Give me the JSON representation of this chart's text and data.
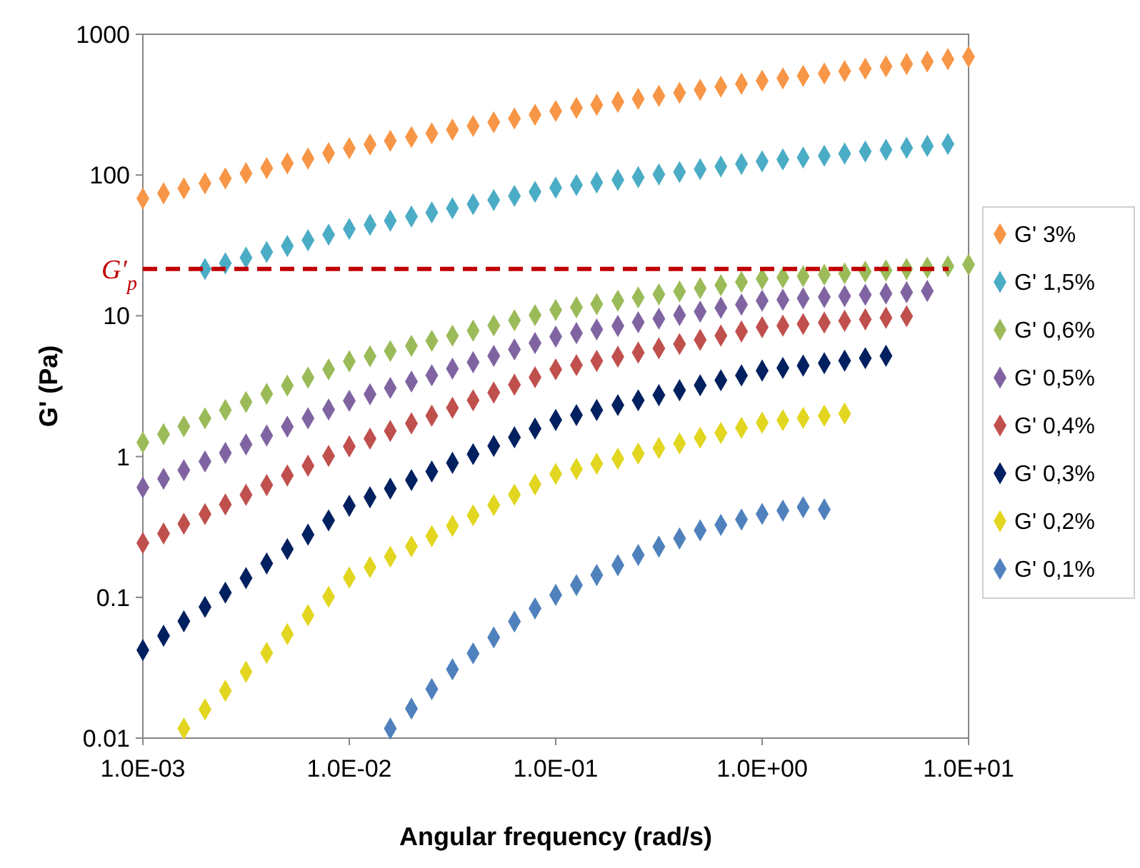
{
  "chart_data": {
    "type": "scatter",
    "xlabel": "Angular frequency (rad/s)",
    "ylabel": "G' (Pa)",
    "log": "xy",
    "grid": false,
    "legend": "right",
    "marker": "diamond",
    "xlim": [
      0.001,
      10
    ],
    "xticks": [
      {
        "value": 0.001,
        "label": "1.0E-03"
      },
      {
        "value": 0.01,
        "label": "1.0E-02"
      },
      {
        "value": 0.1,
        "label": "1.0E-01"
      },
      {
        "value": 1,
        "label": "1.0E+00"
      },
      {
        "value": 10,
        "label": "1.0E+01"
      }
    ],
    "ylim": [
      0.01,
      1000
    ],
    "yticks": [
      0.01,
      0.1,
      1,
      10,
      100,
      1000
    ],
    "x": [
      0.001,
      0.00126,
      0.00158,
      0.002,
      0.00251,
      0.00316,
      0.00398,
      0.00501,
      0.00631,
      0.00794,
      0.01,
      0.0126,
      0.0158,
      0.02,
      0.0251,
      0.0316,
      0.0398,
      0.0501,
      0.0631,
      0.0794,
      0.1,
      0.126,
      0.158,
      0.2,
      0.251,
      0.316,
      0.398,
      0.501,
      0.631,
      0.794,
      1,
      1.26,
      1.58,
      2,
      2.51,
      3.16,
      3.98,
      5.01,
      6.31,
      7.94,
      10
    ],
    "series": [
      {
        "name": "G' 3%",
        "color": "#f79646",
        "values": [
          68.2,
          74.1,
          80.4,
          87.3,
          94.6,
          103,
          112,
          121,
          131,
          143,
          155,
          165,
          175,
          186,
          198,
          210,
          223,
          237,
          252,
          268,
          285,
          300,
          315,
          331,
          348,
          365,
          384,
          403,
          424,
          445,
          468,
          486,
          506,
          526,
          547,
          569,
          592,
          615,
          640,
          665,
          692
        ]
      },
      {
        "name": "G' 1,5%",
        "color": "#4bacc6",
        "values": [
          null,
          null,
          null,
          21.5,
          23.6,
          25.9,
          28.4,
          31.3,
          34.4,
          37.7,
          41.4,
          44.3,
          47.4,
          50.7,
          54.2,
          58.1,
          62.1,
          66.4,
          71.0,
          76.0,
          81.3,
          84.9,
          88.5,
          92.5,
          96.6,
          101,
          105,
          110,
          115,
          120,
          125,
          129,
          133,
          137,
          142,
          147,
          151,
          156,
          161,
          166,
          null
        ]
      },
      {
        "name": "G' 0,6%",
        "color": "#9bbb59",
        "values": [
          1.26,
          1.44,
          1.64,
          1.87,
          2.14,
          2.44,
          2.79,
          3.19,
          3.64,
          4.16,
          4.75,
          5.16,
          5.62,
          6.11,
          6.64,
          7.22,
          7.85,
          8.53,
          9.29,
          10.1,
          11.0,
          11.5,
          12.1,
          12.8,
          13.5,
          14.2,
          14.9,
          15.7,
          16.5,
          17.4,
          18.3,
          18.7,
          19.1,
          19.6,
          20.0,
          20.6,
          21.0,
          21.5,
          22.0,
          22.5,
          23.1
        ]
      },
      {
        "name": "G' 0,5%",
        "color": "#8064a2",
        "values": [
          0.603,
          0.695,
          0.8,
          0.923,
          1.06,
          1.22,
          1.41,
          1.63,
          1.87,
          2.16,
          2.49,
          2.77,
          3.07,
          3.41,
          3.78,
          4.21,
          4.68,
          5.19,
          5.77,
          6.4,
          7.11,
          7.53,
          8.0,
          8.47,
          8.99,
          9.53,
          10.1,
          10.7,
          11.4,
          12.0,
          12.8,
          13.0,
          13.3,
          13.6,
          13.8,
          14.1,
          14.4,
          14.7,
          15.0,
          null,
          null
        ]
      },
      {
        "name": "G' 0,4%",
        "color": "#c0504d",
        "values": [
          0.243,
          0.284,
          0.333,
          0.39,
          0.457,
          0.535,
          0.627,
          0.734,
          0.861,
          1.01,
          1.18,
          1.34,
          1.52,
          1.72,
          1.95,
          2.22,
          2.51,
          2.85,
          3.24,
          3.66,
          4.16,
          4.46,
          4.78,
          5.12,
          5.48,
          5.87,
          6.3,
          6.75,
          7.23,
          7.74,
          8.3,
          8.51,
          8.73,
          8.95,
          9.2,
          9.44,
          9.68,
          9.93,
          null,
          null,
          null
        ]
      },
      {
        "name": "G' 0,3%",
        "color": "#002060",
        "values": [
          0.0422,
          0.0533,
          0.0676,
          0.0855,
          0.108,
          0.137,
          0.174,
          0.22,
          0.279,
          0.352,
          0.447,
          0.514,
          0.592,
          0.681,
          0.783,
          0.902,
          1.04,
          1.19,
          1.37,
          1.58,
          1.82,
          1.97,
          2.14,
          2.32,
          2.51,
          2.73,
          2.96,
          3.21,
          3.48,
          3.77,
          4.08,
          4.26,
          4.43,
          4.61,
          4.8,
          5.0,
          5.2,
          null,
          null,
          null,
          null
        ]
      },
      {
        "name": "G' 0,2%",
        "color": "#e2d620",
        "values": [
          null,
          null,
          0.0117,
          0.016,
          0.0217,
          0.0296,
          0.0403,
          0.0548,
          0.0746,
          0.101,
          0.138,
          0.164,
          0.194,
          0.23,
          0.272,
          0.322,
          0.382,
          0.452,
          0.536,
          0.634,
          0.752,
          0.817,
          0.889,
          0.966,
          1.05,
          1.15,
          1.24,
          1.36,
          1.47,
          1.6,
          1.74,
          1.81,
          1.88,
          1.95,
          2.02,
          null,
          null,
          null,
          null,
          null,
          null
        ]
      },
      {
        "name": "G' 0,1%",
        "color": "#4f81bd",
        "values": [
          null,
          null,
          null,
          null,
          null,
          null,
          null,
          null,
          null,
          null,
          null,
          null,
          0.0117,
          0.0162,
          0.0223,
          0.0308,
          0.04,
          0.0519,
          0.0673,
          0.0834,
          0.104,
          0.122,
          0.144,
          0.169,
          0.2,
          0.229,
          0.262,
          0.299,
          0.327,
          0.357,
          0.391,
          0.413,
          0.437,
          0.421,
          null,
          null,
          null,
          null,
          null,
          null,
          null
        ]
      }
    ],
    "ref_lines": [
      {
        "axis": "y",
        "value": 21.5,
        "label": "G′$_{p}$",
        "color": "#c00000",
        "line_style": "dashed"
      }
    ]
  }
}
